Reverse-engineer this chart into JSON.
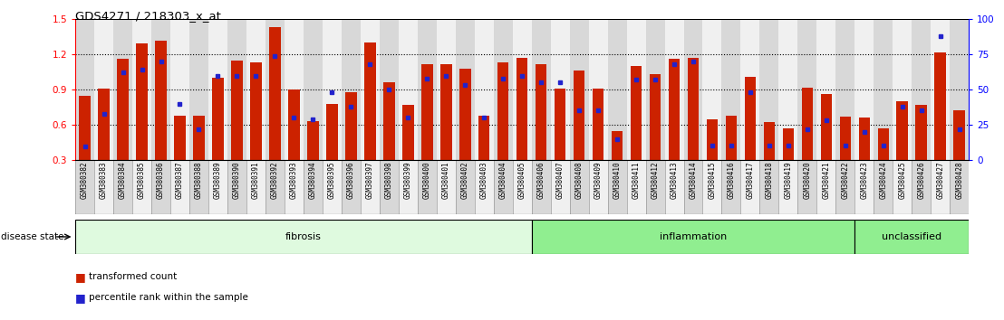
{
  "title": "GDS4271 / 218303_x_at",
  "samples": [
    "GSM380382",
    "GSM380383",
    "GSM380384",
    "GSM380385",
    "GSM380386",
    "GSM380387",
    "GSM380388",
    "GSM380389",
    "GSM380390",
    "GSM380391",
    "GSM380392",
    "GSM380393",
    "GSM380394",
    "GSM380395",
    "GSM380396",
    "GSM380397",
    "GSM380398",
    "GSM380399",
    "GSM380400",
    "GSM380401",
    "GSM380402",
    "GSM380403",
    "GSM380404",
    "GSM380405",
    "GSM380406",
    "GSM380407",
    "GSM380408",
    "GSM380409",
    "GSM380410",
    "GSM380411",
    "GSM380412",
    "GSM380413",
    "GSM380414",
    "GSM380415",
    "GSM380416",
    "GSM380417",
    "GSM380418",
    "GSM380419",
    "GSM380420",
    "GSM380421",
    "GSM380422",
    "GSM380423",
    "GSM380424",
    "GSM380425",
    "GSM380426",
    "GSM380427",
    "GSM380428"
  ],
  "bar_heights": [
    0.85,
    0.91,
    1.16,
    1.29,
    1.32,
    0.68,
    0.68,
    1.0,
    1.15,
    1.13,
    1.43,
    0.9,
    0.63,
    0.78,
    0.88,
    1.3,
    0.96,
    0.77,
    1.12,
    1.12,
    1.08,
    0.68,
    1.13,
    1.17,
    1.12,
    0.91,
    1.06,
    0.91,
    0.55,
    1.1,
    1.03,
    1.16,
    1.17,
    0.65,
    0.68,
    1.01,
    0.62,
    0.57,
    0.92,
    0.86,
    0.67,
    0.66,
    0.57,
    0.8,
    0.77,
    1.22,
    0.72
  ],
  "percentile_fracs": [
    0.095,
    0.33,
    0.62,
    0.64,
    0.7,
    0.4,
    0.22,
    0.6,
    0.6,
    0.6,
    0.74,
    0.3,
    0.29,
    0.48,
    0.38,
    0.68,
    0.5,
    0.3,
    0.58,
    0.6,
    0.53,
    0.3,
    0.58,
    0.6,
    0.55,
    0.55,
    0.35,
    0.35,
    0.15,
    0.57,
    0.57,
    0.68,
    0.7,
    0.1,
    0.1,
    0.48,
    0.1,
    0.1,
    0.22,
    0.28,
    0.1,
    0.2,
    0.1,
    0.38,
    0.35,
    0.88,
    0.22
  ],
  "ylim": [
    0.3,
    1.5
  ],
  "yticks_left": [
    0.3,
    0.6,
    0.9,
    1.2,
    1.5
  ],
  "yticks_right": [
    0,
    25,
    50,
    75,
    100
  ],
  "bar_color": "#CC2200",
  "dot_color": "#2222CC",
  "group_fibrosis_color": "#DFFADF",
  "group_inflammation_color": "#90EE90",
  "group_unclassified_color": "#90EE90",
  "col_even_color": "#D8D8D8",
  "col_odd_color": "#F0F0F0",
  "groups": [
    {
      "label": "fibrosis",
      "start": 0,
      "end": 24
    },
    {
      "label": "inflammation",
      "start": 24,
      "end": 41
    },
    {
      "label": "unclassified",
      "start": 41,
      "end": 47
    }
  ]
}
